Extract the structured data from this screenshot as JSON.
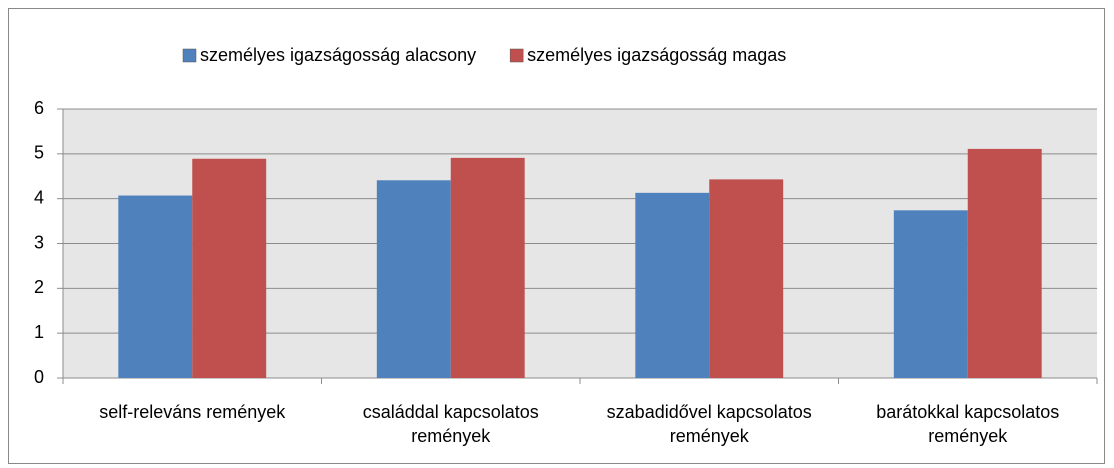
{
  "chart_data": {
    "type": "bar",
    "categories": [
      "self-releváns remények",
      "családdal kapcsolatos remények",
      "szabadidővel kapcsolatos remények",
      "barátokkal kapcsolatos remények"
    ],
    "series": [
      {
        "name": "személyes igazságosság alacsony",
        "color": "#4f81bd",
        "values": [
          4.07,
          4.41,
          4.13,
          3.74
        ]
      },
      {
        "name": "személyes igazságosság magas",
        "color": "#c0504d",
        "values": [
          4.89,
          4.91,
          4.43,
          5.11
        ]
      }
    ],
    "ylim": [
      0,
      6
    ],
    "yticks": [
      0,
      1,
      2,
      3,
      4,
      5,
      6
    ],
    "grid": true,
    "legend": "top"
  }
}
